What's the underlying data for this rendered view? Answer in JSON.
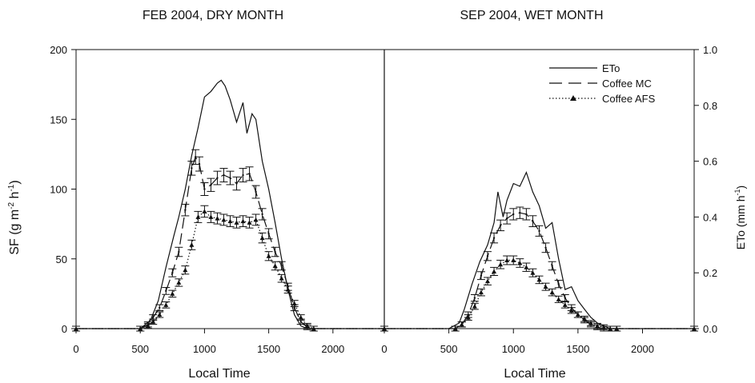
{
  "chart_data": {
    "type": "line",
    "y_axis": {
      "label_base": "SF (g m",
      "sup1": "-2",
      "label_mid": " h",
      "sup2": "-1",
      "label_end": ")",
      "ylim": [
        0,
        200
      ],
      "ticks": [
        "0",
        "50",
        "100",
        "150",
        "200"
      ]
    },
    "y2_axis": {
      "label_base": "ETo (mm h",
      "sup": "-1",
      "label_end": ")",
      "ylim": [
        0,
        1.0
      ],
      "ticks": [
        "0.0",
        "0.2",
        "0.4",
        "0.6",
        "0.8",
        "1.0"
      ]
    },
    "legend": {
      "placement": "top-right",
      "entries": [
        "ETo",
        "Coffee MC",
        "Coffee AFS"
      ]
    },
    "panels": [
      {
        "title": "FEB 2004, DRY MONTH",
        "xlabel": "Local Time",
        "xlim": [
          0,
          2400
        ],
        "xticks": [
          "0",
          "500",
          "1000",
          "1500",
          "2000"
        ],
        "series": [
          {
            "name": "ETo",
            "axis": "right",
            "x": [
              0,
              500,
              580,
              640,
              700,
              760,
              800,
              850,
              900,
              950,
              1000,
              1050,
              1100,
              1130,
              1160,
              1200,
              1250,
              1300,
              1330,
              1370,
              1400,
              1450,
              1500,
              1550,
              1600,
              1650,
              1700,
              1750,
              1800,
              2400
            ],
            "y": [
              0,
              0,
              0.03,
              0.1,
              0.22,
              0.33,
              0.4,
              0.5,
              0.62,
              0.72,
              0.83,
              0.85,
              0.88,
              0.89,
              0.87,
              0.82,
              0.74,
              0.81,
              0.7,
              0.77,
              0.75,
              0.6,
              0.5,
              0.38,
              0.25,
              0.14,
              0.05,
              0.01,
              0,
              0
            ]
          },
          {
            "name": "Coffee MC",
            "axis": "left",
            "x": [
              0,
              500,
              560,
              600,
              650,
              700,
              750,
              800,
              850,
              900,
              930,
              960,
              1000,
              1050,
              1100,
              1150,
              1200,
              1250,
              1300,
              1350,
              1400,
              1450,
              1500,
              1550,
              1600,
              1650,
              1700,
              1750,
              1800,
              1850,
              2400
            ],
            "y": [
              0,
              0,
              3,
              8,
              15,
              27,
              40,
              55,
              85,
              115,
              123,
              118,
              100,
              103,
              108,
              110,
              108,
              104,
              110,
              111,
              98,
              82,
              68,
              55,
              45,
              30,
              15,
              5,
              1,
              0,
              0
            ]
          },
          {
            "name": "Coffee AFS",
            "axis": "left",
            "x": [
              0,
              500,
              560,
              600,
              650,
              700,
              750,
              800,
              850,
              900,
              950,
              1000,
              1050,
              1100,
              1150,
              1200,
              1250,
              1300,
              1350,
              1400,
              1450,
              1500,
              1550,
              1600,
              1650,
              1700,
              1750,
              1800,
              1850,
              2400
            ],
            "y": [
              0,
              0,
              2,
              5,
              10,
              17,
              25,
              33,
              42,
              60,
              80,
              84,
              80,
              79,
              78,
              77,
              76,
              77,
              76,
              78,
              65,
              52,
              45,
              36,
              28,
              18,
              8,
              2,
              0,
              0
            ]
          }
        ]
      },
      {
        "title": "SEP 2004, WET MONTH",
        "xlabel": "Local Time",
        "xlim": [
          0,
          2400
        ],
        "xticks": [
          "0",
          "500",
          "1000",
          "1500",
          "2000"
        ],
        "series": [
          {
            "name": "ETo",
            "axis": "right",
            "x": [
              0,
              500,
              580,
              620,
              680,
              740,
              800,
              850,
              880,
              920,
              950,
              1000,
              1050,
              1100,
              1150,
              1200,
              1250,
              1300,
              1350,
              1400,
              1450,
              1500,
              1550,
              1600,
              1650,
              1700,
              1750,
              2400
            ],
            "y": [
              0,
              0,
              0.02,
              0.07,
              0.16,
              0.24,
              0.3,
              0.38,
              0.49,
              0.4,
              0.46,
              0.52,
              0.51,
              0.56,
              0.49,
              0.44,
              0.36,
              0.38,
              0.25,
              0.14,
              0.15,
              0.1,
              0.07,
              0.04,
              0.02,
              0.01,
              0,
              0
            ]
          },
          {
            "name": "Coffee MC",
            "axis": "left",
            "x": [
              0,
              550,
              600,
              650,
              700,
              750,
              800,
              850,
              900,
              950,
              1000,
              1050,
              1100,
              1150,
              1200,
              1250,
              1300,
              1350,
              1400,
              1450,
              1500,
              1550,
              1600,
              1650,
              1700,
              1750,
              1800,
              2400
            ],
            "y": [
              0,
              0,
              3,
              10,
              22,
              38,
              52,
              65,
              74,
              79,
              82,
              83,
              82,
              77,
              70,
              58,
              45,
              32,
              22,
              15,
              10,
              6,
              3,
              1,
              0,
              0,
              0,
              0
            ]
          },
          {
            "name": "Coffee AFS",
            "axis": "left",
            "x": [
              0,
              550,
              600,
              650,
              700,
              750,
              800,
              850,
              900,
              950,
              1000,
              1050,
              1100,
              1150,
              1200,
              1250,
              1300,
              1350,
              1400,
              1450,
              1500,
              1550,
              1600,
              1650,
              1700,
              1750,
              1800,
              2400
            ],
            "y": [
              0,
              0,
              3,
              8,
              16,
              26,
              34,
              41,
              46,
              49,
              49,
              47,
              44,
              40,
              35,
              30,
              26,
              21,
              17,
              13,
              10,
              7,
              4,
              2,
              1,
              0,
              0,
              0
            ]
          }
        ]
      }
    ]
  }
}
